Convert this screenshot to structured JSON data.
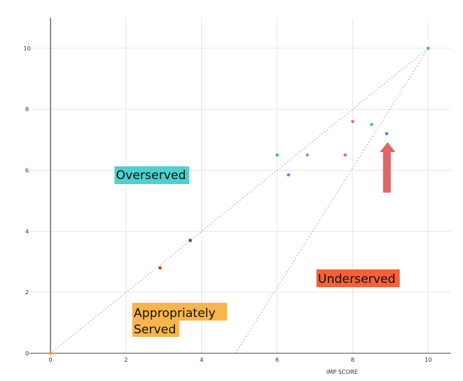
{
  "chart_data": {
    "type": "scatter",
    "xlabel": "IMP SCORE",
    "ylabel": "",
    "xlim": [
      0,
      10.6
    ],
    "ylim": [
      0,
      11
    ],
    "x_ticks": [
      "0",
      "2",
      "4",
      "6",
      "8",
      "10"
    ],
    "y_ticks": [
      "0",
      "2",
      "4",
      "6",
      "8",
      "10"
    ],
    "grid": true,
    "points": [
      {
        "x": 0.0,
        "y": 0.0,
        "color": "#f39c12"
      },
      {
        "x": 2.9,
        "y": 2.8,
        "color": "#b5471a"
      },
      {
        "x": 3.7,
        "y": 3.7,
        "color": "#1f6b2a"
      },
      {
        "x": 6.0,
        "y": 6.5,
        "color": "#35b4e6"
      },
      {
        "x": 6.3,
        "y": 5.85,
        "color": "#b45ee0"
      },
      {
        "x": 6.8,
        "y": 6.5,
        "color": "#9e9e9e"
      },
      {
        "x": 7.8,
        "y": 6.5,
        "color": "#ef5fb3"
      },
      {
        "x": 8.0,
        "y": 7.6,
        "color": "#f4705a"
      },
      {
        "x": 8.5,
        "y": 7.5,
        "color": "#2ed1a4"
      },
      {
        "x": 8.9,
        "y": 7.2,
        "color": "#4a86e8"
      },
      {
        "x": 10.0,
        "y": 10.0,
        "color": "#5cc45c"
      }
    ],
    "reference_lines": [
      {
        "from": [
          0,
          0
        ],
        "to": [
          10,
          10
        ]
      },
      {
        "from": [
          4.9,
          0
        ],
        "to": [
          10,
          10
        ]
      }
    ],
    "annotations": [
      {
        "text": "Overserved",
        "background": "#4fd1cf"
      },
      {
        "text": "Underserved",
        "background": "#f4623a"
      },
      {
        "text": "Appropriately",
        "background": "#f7b54c"
      },
      {
        "text": "Served",
        "background": "#f7b54c"
      }
    ],
    "arrow": {
      "color": "#e06666",
      "direction": "up"
    }
  }
}
